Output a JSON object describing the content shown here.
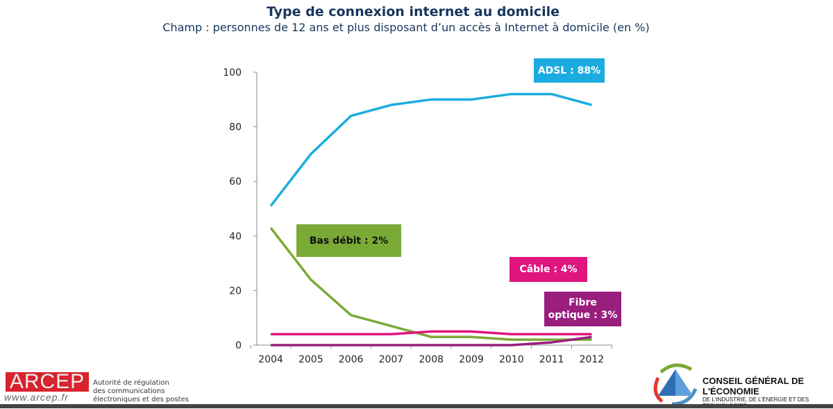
{
  "chart_data": {
    "type": "line",
    "title": "Type de connexion internet au domicile",
    "subtitle": "Champ : personnes de 12 ans et plus disposant d’un accès à Internet à domicile (en %)",
    "x": [
      "2004",
      "2005",
      "2006",
      "2007",
      "2008",
      "2009",
      "2010",
      "2011",
      "2012"
    ],
    "ylim": [
      0,
      100
    ],
    "yticks": [
      "0",
      "20",
      "40",
      "60",
      "80",
      "100"
    ],
    "series": [
      {
        "name": "ADSL",
        "label": "ADSL : 88%",
        "color": "#1aace0",
        "values": [
          51,
          70,
          84,
          88,
          90,
          90,
          92,
          92,
          88
        ]
      },
      {
        "name": "Bas débit",
        "label": "Bas débit : 2%",
        "color": "#7aaa36",
        "values": [
          43,
          24,
          11,
          7,
          3,
          3,
          2,
          2,
          2
        ]
      },
      {
        "name": "Câble",
        "label": "Câble : 4%",
        "color": "#e0157f",
        "values": [
          4,
          4,
          4,
          4,
          5,
          5,
          4,
          4,
          4
        ]
      },
      {
        "name": "Fibre optique",
        "label_line1": "Fibre",
        "label_line2": "optique : 3%",
        "color": "#991e7e",
        "values": [
          0,
          0,
          0,
          0,
          0,
          0,
          0,
          1,
          3
        ]
      }
    ]
  },
  "footer": {
    "arcep_logo": "ARCEP",
    "arcep_url": "www.arcep.fr",
    "arcep_text": [
      "Autorité de régulation",
      "des communications",
      "électroniques et des postes"
    ],
    "cge_title": "CONSEIL GÉNÉRAL DE L'ÉCONOMIE",
    "cge_sub": "DE L'INDUSTRIE, DE L'ÉNERGIE ET DES TECHNOLOGIES"
  }
}
